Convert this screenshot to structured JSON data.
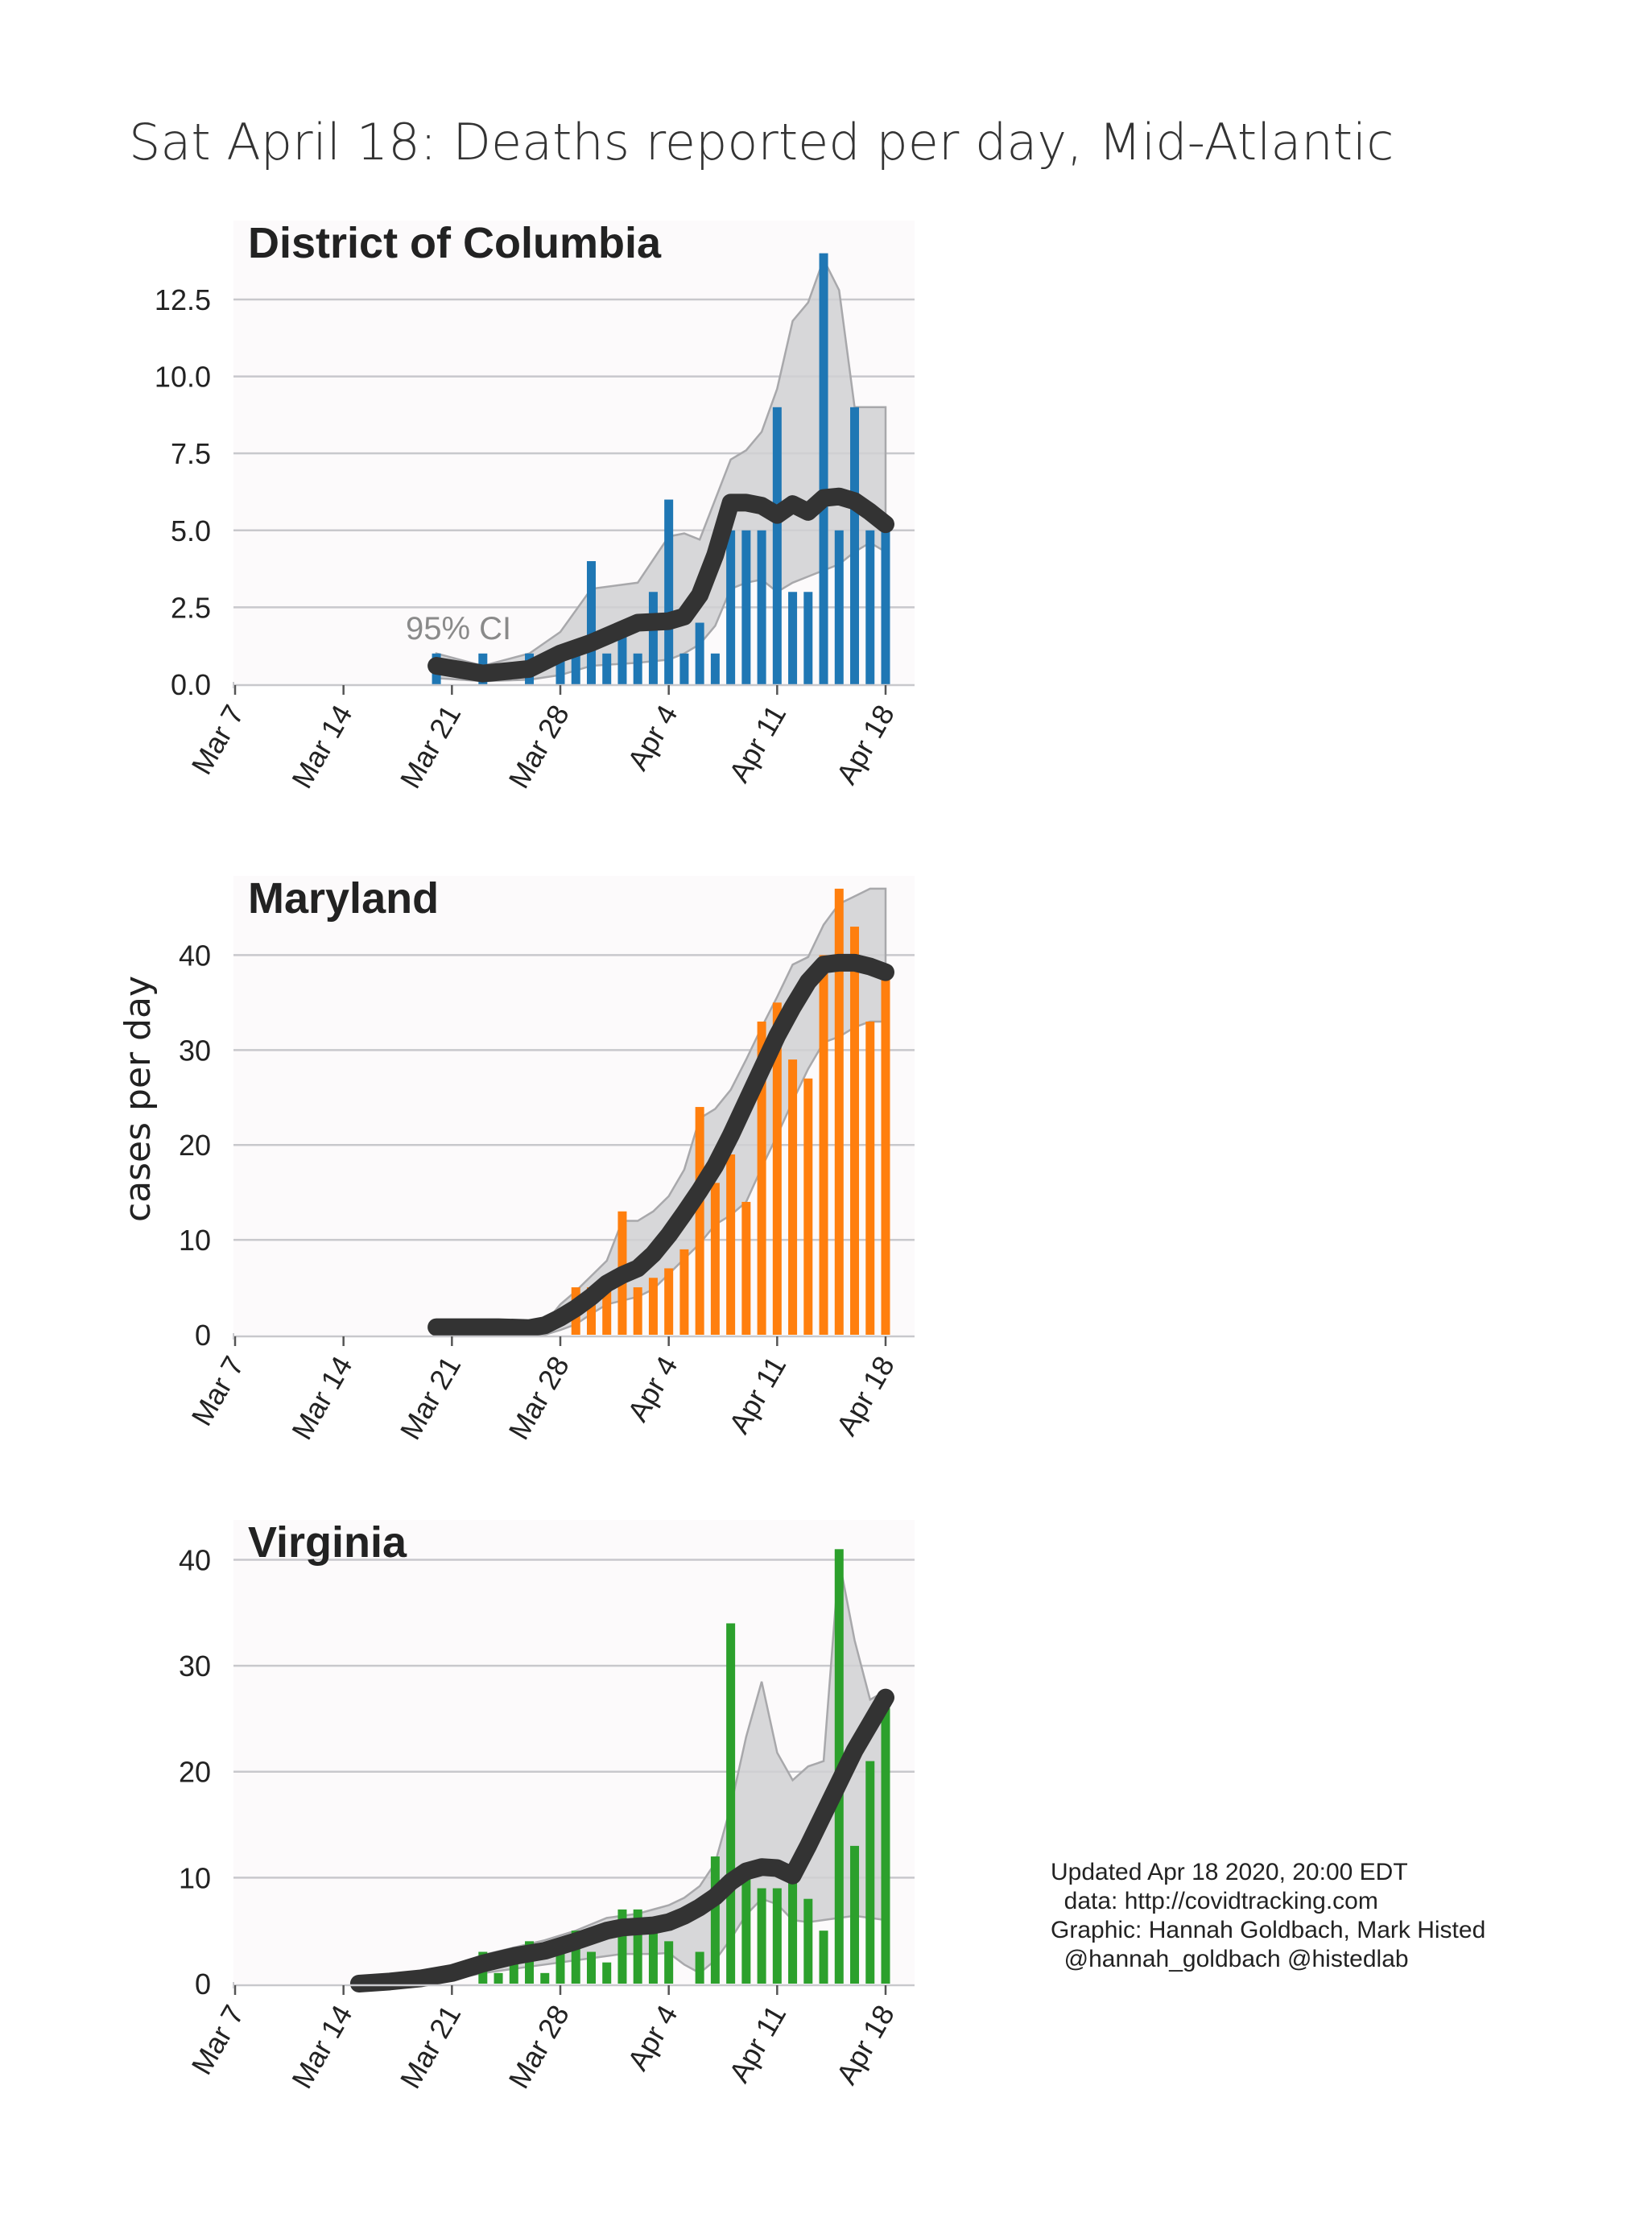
{
  "figure": {
    "title": "Sat April 18: Deaths reported per day, Mid-Atlantic",
    "ylabel": "cases per day",
    "ci_label": "95% CI",
    "credits": [
      "Updated Apr 18 2020, 20:00 EDT",
      "  data: http://covidtracking.com",
      "Graphic: Hannah Goldbach, Mark Histed",
      "  @hannah_goldbach @histedlab"
    ],
    "colors": {
      "District of Columbia": "#1f77b4",
      "Maryland": "#ff7f0e",
      "Virginia": "#2ca02c",
      "trend": "#333333",
      "ci_band": "#d0d0d2",
      "panel_bg": "#fcfafb"
    }
  },
  "chart_data": [
    {
      "type": "bar",
      "title": "District of Columbia",
      "x_start": "2020-03-07",
      "x_end": "2020-04-18",
      "xticks": [
        "Mar 7",
        "Mar 14",
        "Mar 21",
        "Mar 28",
        "Apr 4",
        "Apr 11",
        "Apr 18"
      ],
      "yticks": [
        "0.0",
        "2.5",
        "5.0",
        "7.5",
        "10.0",
        "12.5"
      ],
      "ylim": [
        0,
        14.8
      ],
      "bar_dates": [
        "2020-03-20",
        "2020-03-23",
        "2020-03-26",
        "2020-03-28",
        "2020-03-29",
        "2020-03-30",
        "2020-03-31",
        "2020-04-01",
        "2020-04-02",
        "2020-04-03",
        "2020-04-04",
        "2020-04-05",
        "2020-04-06",
        "2020-04-07",
        "2020-04-08",
        "2020-04-09",
        "2020-04-10",
        "2020-04-11",
        "2020-04-12",
        "2020-04-13",
        "2020-04-14",
        "2020-04-15",
        "2020-04-16",
        "2020-04-17",
        "2020-04-18"
      ],
      "bar_values": [
        1,
        1,
        1,
        1,
        1,
        4,
        1,
        2,
        1,
        3,
        6,
        1,
        2,
        1,
        5,
        5,
        5,
        9,
        3,
        3,
        14,
        5,
        9,
        5,
        5
      ],
      "trend_dates": [
        "2020-03-20",
        "2020-03-23",
        "2020-03-26",
        "2020-03-28",
        "2020-03-30",
        "2020-04-02",
        "2020-04-04",
        "2020-04-05",
        "2020-04-06",
        "2020-04-07",
        "2020-04-08",
        "2020-04-09",
        "2020-04-10",
        "2020-04-11",
        "2020-04-12",
        "2020-04-13",
        "2020-04-14",
        "2020-04-15",
        "2020-04-16",
        "2020-04-17",
        "2020-04-18"
      ],
      "trend_values": [
        0.6,
        0.35,
        0.5,
        1.0,
        1.35,
        2.0,
        2.05,
        2.2,
        2.9,
        4.2,
        5.9,
        5.9,
        5.8,
        5.5,
        5.85,
        5.6,
        6.05,
        6.1,
        5.95,
        5.6,
        5.2
      ],
      "ci_lower": [
        0.2,
        0.1,
        0.15,
        0.3,
        0.6,
        0.7,
        0.8,
        1.0,
        1.3,
        1.9,
        3.1,
        3.3,
        3.4,
        3.0,
        3.3,
        3.5,
        3.7,
        3.9,
        4.3,
        4.6,
        4.3
      ],
      "ci_upper": [
        1.0,
        0.6,
        1.0,
        1.7,
        3.1,
        3.3,
        4.8,
        4.9,
        4.7,
        6.0,
        7.3,
        7.6,
        8.2,
        9.6,
        11.8,
        12.4,
        13.8,
        12.8,
        9.0,
        9.0,
        9.0
      ]
    },
    {
      "type": "bar",
      "title": "Maryland",
      "x_start": "2020-03-07",
      "x_end": "2020-04-18",
      "xticks": [
        "Mar 7",
        "Mar 14",
        "Mar 21",
        "Mar 28",
        "Apr 4",
        "Apr 11",
        "Apr 18"
      ],
      "yticks": [
        "0",
        "10",
        "20",
        "30",
        "40"
      ],
      "ylim": [
        0,
        47.5
      ],
      "bar_dates": [
        "2020-03-29",
        "2020-03-30",
        "2020-03-31",
        "2020-04-01",
        "2020-04-02",
        "2020-04-03",
        "2020-04-04",
        "2020-04-05",
        "2020-04-06",
        "2020-04-07",
        "2020-04-08",
        "2020-04-09",
        "2020-04-10",
        "2020-04-11",
        "2020-04-12",
        "2020-04-13",
        "2020-04-14",
        "2020-04-15",
        "2020-04-16",
        "2020-04-17",
        "2020-04-18"
      ],
      "bar_values": [
        5,
        5,
        5,
        13,
        5,
        6,
        7,
        9,
        24,
        16,
        19,
        14,
        33,
        35,
        29,
        27,
        40,
        47,
        43,
        33,
        38
      ],
      "trend_dates": [
        "2020-03-20",
        "2020-03-22",
        "2020-03-24",
        "2020-03-26",
        "2020-03-27",
        "2020-03-28",
        "2020-03-29",
        "2020-03-30",
        "2020-03-31",
        "2020-04-01",
        "2020-04-02",
        "2020-04-03",
        "2020-04-04",
        "2020-04-05",
        "2020-04-06",
        "2020-04-07",
        "2020-04-08",
        "2020-04-09",
        "2020-04-10",
        "2020-04-11",
        "2020-04-12",
        "2020-04-13",
        "2020-04-14",
        "2020-04-15",
        "2020-04-16",
        "2020-04-17",
        "2020-04-18"
      ],
      "trend_values": [
        0.8,
        0.8,
        0.8,
        0.7,
        1.0,
        1.8,
        2.8,
        4.0,
        5.4,
        6.3,
        7.0,
        8.5,
        10.5,
        12.8,
        15.2,
        17.8,
        21.0,
        24.5,
        28.0,
        31.5,
        34.5,
        37.2,
        39.0,
        39.2,
        39.2,
        38.8,
        38.2
      ],
      "ci_lower": [
        0.0,
        0.0,
        0.0,
        0.0,
        0.0,
        0.5,
        1.1,
        2.2,
        3.2,
        3.6,
        4.0,
        4.8,
        6.4,
        8.0,
        9.6,
        11.6,
        12.6,
        14.0,
        17.6,
        21.0,
        24.6,
        28.0,
        30.8,
        31.4,
        32.4,
        33.0,
        33.0
      ],
      "ci_upper": [
        0.0,
        0.0,
        0.0,
        0.4,
        1.2,
        3.2,
        4.6,
        6.2,
        7.8,
        12.0,
        12.0,
        13.0,
        14.6,
        17.4,
        22.8,
        23.8,
        25.8,
        29.0,
        32.4,
        35.6,
        39.0,
        39.8,
        43.2,
        45.4,
        46.2,
        47.0,
        47.0
      ]
    },
    {
      "type": "bar",
      "title": "Virginia",
      "x_start": "2020-03-07",
      "x_end": "2020-04-18",
      "xticks": [
        "Mar 7",
        "Mar 14",
        "Mar 21",
        "Mar 28",
        "Apr 4",
        "Apr 11",
        "Apr 18"
      ],
      "yticks": [
        "0",
        "10",
        "20",
        "30",
        "40"
      ],
      "ylim": [
        0,
        43
      ],
      "bar_dates": [
        "2020-03-23",
        "2020-03-24",
        "2020-03-25",
        "2020-03-26",
        "2020-03-27",
        "2020-03-28",
        "2020-03-29",
        "2020-03-30",
        "2020-03-31",
        "2020-04-01",
        "2020-04-02",
        "2020-04-03",
        "2020-04-04",
        "2020-04-06",
        "2020-04-07",
        "2020-04-08",
        "2020-04-09",
        "2020-04-10",
        "2020-04-11",
        "2020-04-12",
        "2020-04-13",
        "2020-04-14",
        "2020-04-15",
        "2020-04-16",
        "2020-04-17",
        "2020-04-18"
      ],
      "bar_values": [
        3,
        1,
        2,
        4,
        1,
        3,
        5,
        3,
        2,
        7,
        7,
        5,
        4,
        3,
        12,
        34,
        11,
        9,
        9,
        10,
        8,
        5,
        41,
        13,
        21,
        26
      ],
      "trend_dates": [
        "2020-03-15",
        "2020-03-17",
        "2020-03-19",
        "2020-03-21",
        "2020-03-23",
        "2020-03-25",
        "2020-03-27",
        "2020-03-29",
        "2020-03-31",
        "2020-04-01",
        "2020-04-02",
        "2020-04-03",
        "2020-04-04",
        "2020-04-05",
        "2020-04-06",
        "2020-04-07",
        "2020-04-08",
        "2020-04-09",
        "2020-04-10",
        "2020-04-11",
        "2020-04-12",
        "2020-04-13",
        "2020-04-14",
        "2020-04-15",
        "2020-04-16",
        "2020-04-17",
        "2020-04-18"
      ],
      "trend_values": [
        0.0,
        0.2,
        0.5,
        1.0,
        1.9,
        2.6,
        3.1,
        4.0,
        5.0,
        5.3,
        5.4,
        5.5,
        5.8,
        6.4,
        7.2,
        8.2,
        9.6,
        10.6,
        11.0,
        10.9,
        10.2,
        13.0,
        16.0,
        19.0,
        22.0,
        24.5,
        27.0
      ],
      "ci_lower": [
        0.0,
        0.0,
        0.0,
        0.4,
        1.0,
        1.4,
        1.8,
        2.2,
        2.6,
        2.8,
        2.8,
        2.8,
        2.9,
        1.8,
        1.0,
        2.2,
        4.2,
        6.5,
        8.0,
        7.5,
        6.0,
        5.8,
        6.0,
        6.2,
        6.4,
        6.2,
        6.0
      ],
      "ci_upper": [
        0.0,
        0.4,
        0.8,
        1.6,
        2.7,
        3.4,
        4.1,
        5.0,
        6.2,
        6.4,
        6.6,
        7.0,
        7.4,
        8.1,
        9.2,
        11.4,
        16.7,
        23.3,
        28.5,
        21.8,
        19.2,
        20.5,
        21.0,
        40.0,
        32.4,
        26.8,
        27.6
      ]
    }
  ]
}
